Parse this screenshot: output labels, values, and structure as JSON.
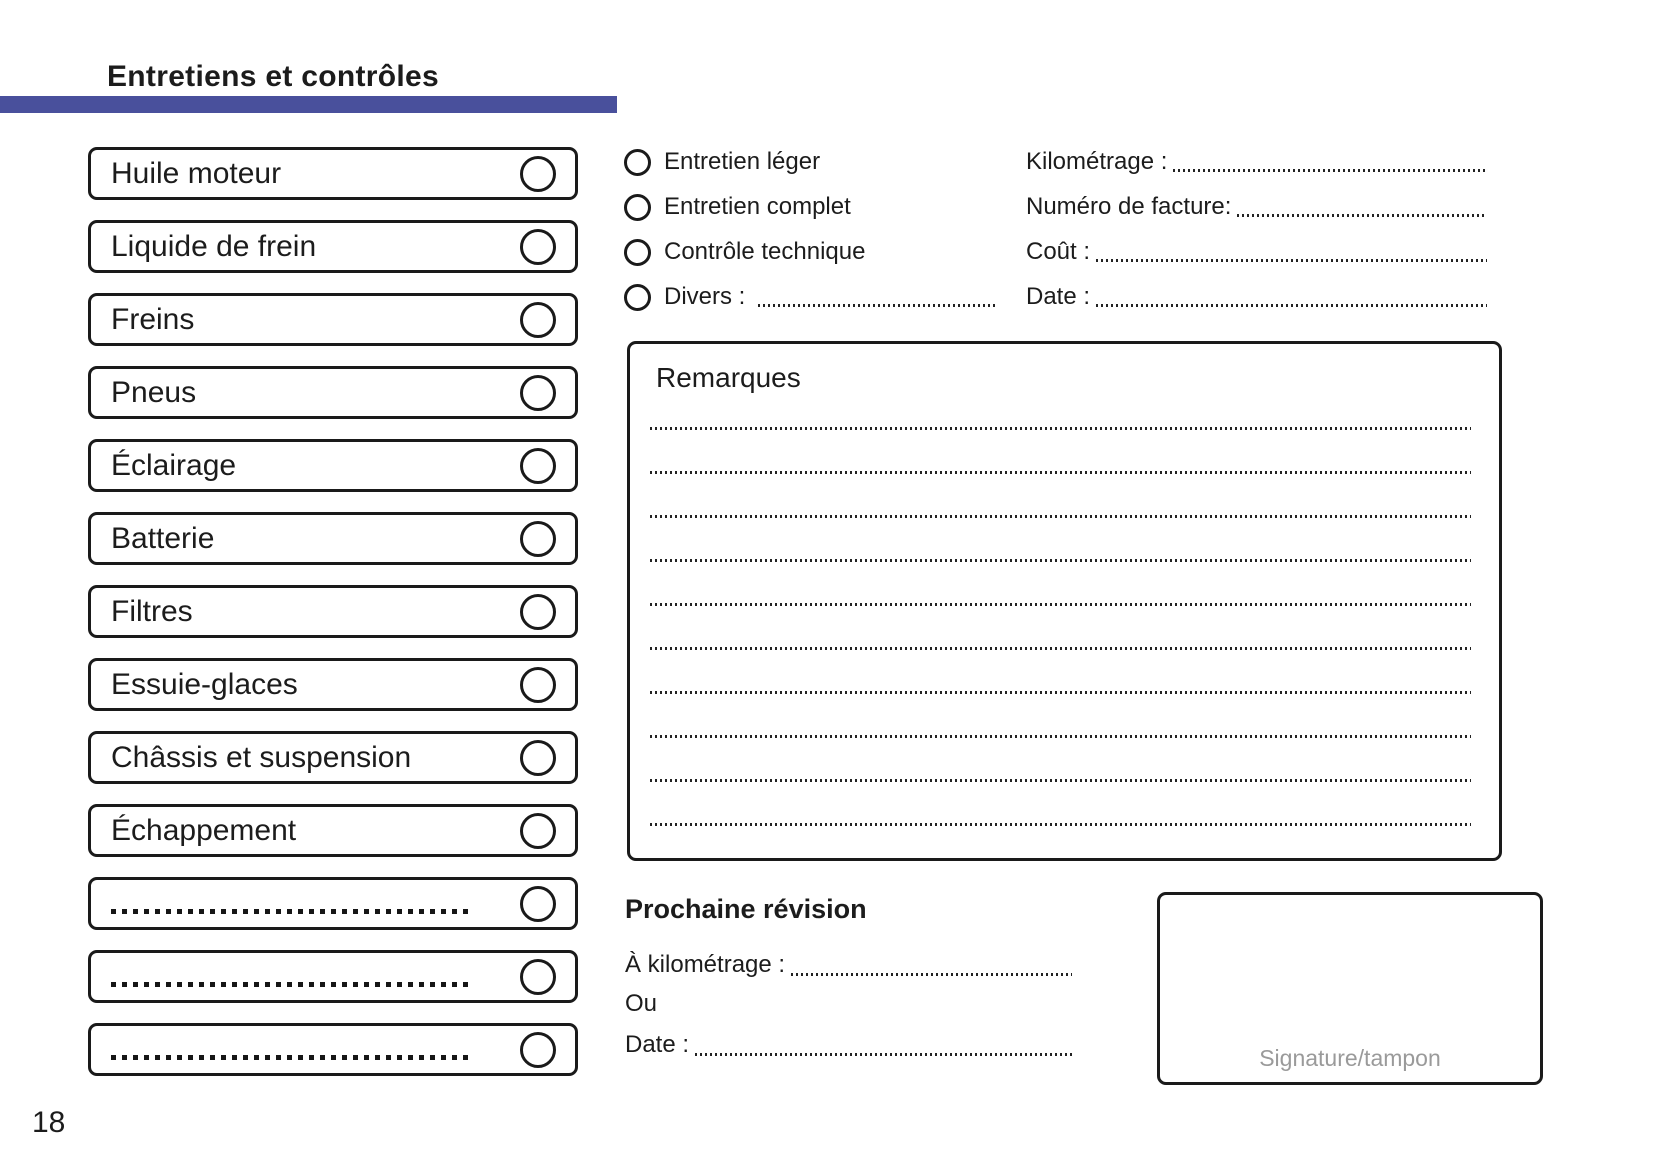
{
  "page": {
    "title": "Entretiens et contrôles",
    "number": "18",
    "accent_color": "#49509c"
  },
  "checklist": {
    "items": [
      {
        "label": "Huile moteur",
        "type": "labeled"
      },
      {
        "label": "Liquide de frein",
        "type": "labeled"
      },
      {
        "label": "Freins",
        "type": "labeled"
      },
      {
        "label": "Pneus",
        "type": "labeled"
      },
      {
        "label": "Éclairage",
        "type": "labeled"
      },
      {
        "label": "Batterie",
        "type": "labeled"
      },
      {
        "label": "Filtres",
        "type": "labeled"
      },
      {
        "label": "Essuie-glaces",
        "type": "labeled"
      },
      {
        "label": "Châssis et suspension",
        "type": "labeled"
      },
      {
        "label": "Échappement",
        "type": "labeled"
      },
      {
        "label": "",
        "type": "blank"
      },
      {
        "label": "",
        "type": "blank"
      },
      {
        "label": "",
        "type": "blank"
      }
    ]
  },
  "service_types": {
    "options": [
      {
        "label": "Entretien léger",
        "has_leader": false
      },
      {
        "label": "Entretien complet",
        "has_leader": false
      },
      {
        "label": "Contrôle technique",
        "has_leader": false
      },
      {
        "label": "Divers :",
        "has_leader": true
      }
    ]
  },
  "record_fields": [
    {
      "label": "Kilométrage :"
    },
    {
      "label": "Numéro de facture:"
    },
    {
      "label": "Coût :"
    },
    {
      "label": "Date :"
    }
  ],
  "remarks": {
    "title": "Remarques",
    "line_count": 10
  },
  "next_service": {
    "title": "Prochaine révision",
    "km_label": "À kilométrage :",
    "or_label": "Ou",
    "date_label": "Date :"
  },
  "signature": {
    "label": "Signature/tampon"
  }
}
